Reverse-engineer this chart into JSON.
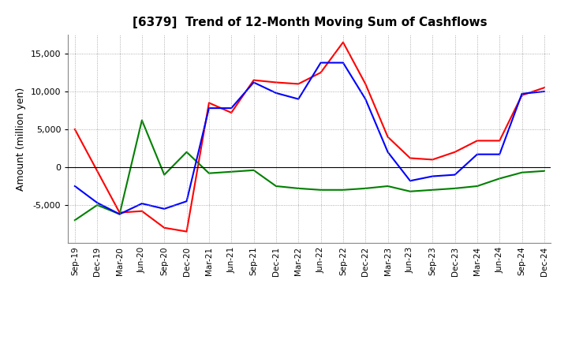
{
  "title": "[6379]  Trend of 12-Month Moving Sum of Cashflows",
  "ylabel": "Amount (million yen)",
  "x_labels": [
    "Sep-19",
    "Dec-19",
    "Mar-20",
    "Jun-20",
    "Sep-20",
    "Dec-20",
    "Mar-21",
    "Jun-21",
    "Sep-21",
    "Dec-21",
    "Mar-22",
    "Jun-22",
    "Sep-22",
    "Dec-22",
    "Mar-23",
    "Jun-23",
    "Sep-23",
    "Dec-23",
    "Mar-24",
    "Jun-24",
    "Sep-24",
    "Dec-24"
  ],
  "operating": [
    5000,
    -500,
    -6000,
    -5800,
    -8000,
    -8500,
    8500,
    7200,
    11500,
    11200,
    11000,
    12500,
    16500,
    11000,
    4000,
    1200,
    1000,
    2000,
    3500,
    3500,
    9500,
    10500
  ],
  "investing": [
    -7000,
    -5000,
    -6200,
    6200,
    -1000,
    2000,
    -800,
    -600,
    -400,
    -2500,
    -2800,
    -3000,
    -3000,
    -2800,
    -2500,
    -3200,
    -3000,
    -2800,
    -2500,
    -1500,
    -700,
    -500
  ],
  "free": [
    -2500,
    -4700,
    -6200,
    -4800,
    -5500,
    -4500,
    7800,
    7800,
    11200,
    9800,
    9000,
    13800,
    13800,
    9000,
    2000,
    -1800,
    -1200,
    -1000,
    1700,
    1700,
    9700,
    10000
  ],
  "operating_color": "#ff0000",
  "investing_color": "#008000",
  "free_color": "#0000ff",
  "ylim": [
    -10000,
    17500
  ],
  "yticks": [
    -5000,
    0,
    5000,
    10000,
    15000
  ],
  "background_color": "#ffffff",
  "grid_color": "#999999"
}
